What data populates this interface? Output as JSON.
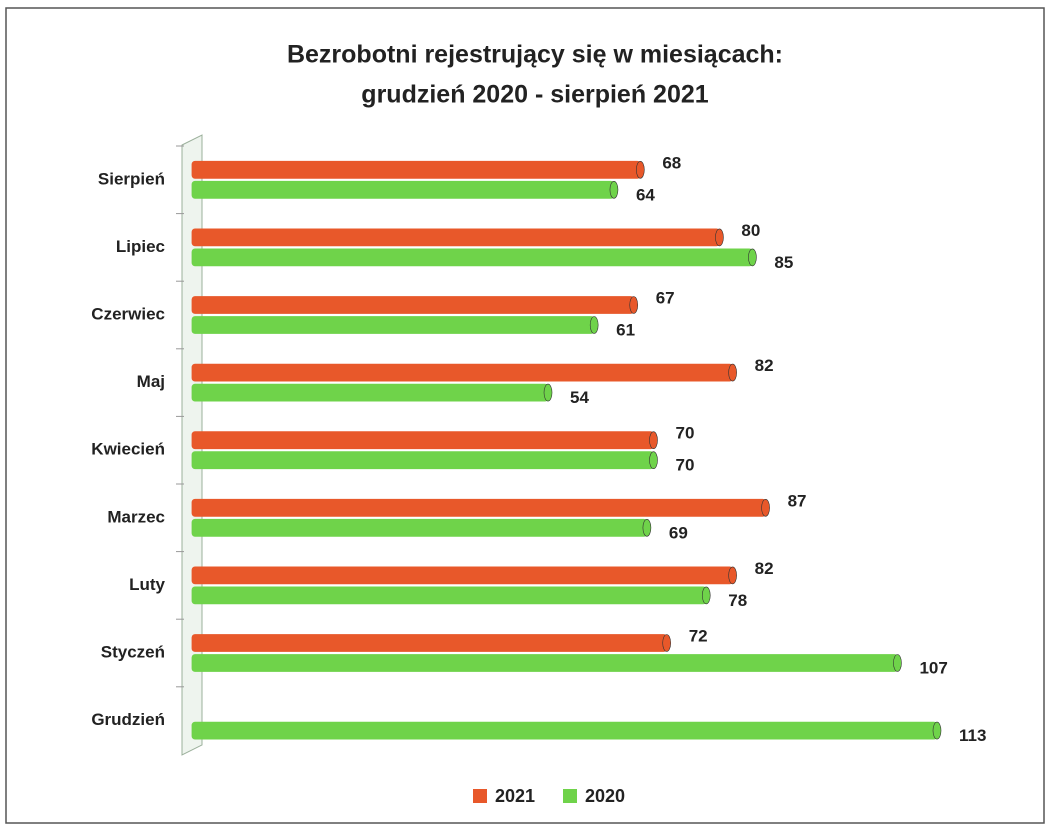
{
  "chart_data": {
    "type": "bar",
    "orientation": "horizontal",
    "title": [
      "Bezrobotni rejestrujący się w miesiącach:",
      "grudzień 2020 - sierpień 2021"
    ],
    "categories": [
      "Sierpień",
      "Lipiec",
      "Czerwiec",
      "Maj",
      "Kwiecień",
      "Marzec",
      "Luty",
      "Styczeń",
      "Grudzień"
    ],
    "series": [
      {
        "name": "2021",
        "color": "#e8582a",
        "values": [
          68,
          80,
          67,
          82,
          70,
          87,
          82,
          72,
          null
        ]
      },
      {
        "name": "2020",
        "color": "#6fd34a",
        "values": [
          64,
          85,
          61,
          54,
          70,
          69,
          78,
          107,
          113
        ]
      }
    ],
    "legend": "bottom"
  }
}
